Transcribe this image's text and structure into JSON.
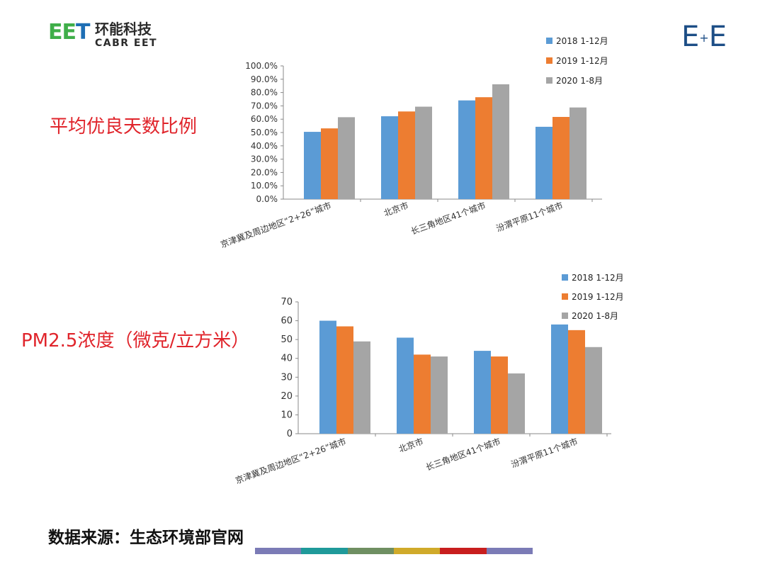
{
  "brand": {
    "logo_mark_green": "EE",
    "logo_mark_blue": "T",
    "logo_cn": "环能科技",
    "logo_en": "CABR EET",
    "corner_mark_left": "E",
    "corner_mark_plus": "+",
    "corner_mark_right": "E"
  },
  "labels": {
    "chart1_side_title": "平均优良天数比例",
    "chart2_side_title": "PM2.5浓度（微克/立方米）"
  },
  "footer": {
    "source": "数据来源：生态环境部官网",
    "stripe_colors": [
      "#7b7bb6",
      "#1f9a9a",
      "#6f8f62",
      "#d0aa2a",
      "#c81e1e",
      "#7b7bb6"
    ]
  },
  "chart_data": [
    {
      "type": "bar",
      "categories": [
        "京津冀及周边地区“2+26”城市",
        "北京市",
        "长三角地区41个城市",
        "汾渭平原11个城市"
      ],
      "series": [
        {
          "name": "2018 1-12月",
          "color": "#5b9bd5",
          "values": [
            50.5,
            62.2,
            74.1,
            54.3
          ]
        },
        {
          "name": "2019 1-12月",
          "color": "#ed7d31",
          "values": [
            53.1,
            65.8,
            76.5,
            61.7
          ]
        },
        {
          "name": "2020 1-8月",
          "color": "#a5a5a5",
          "values": [
            61.5,
            69.4,
            86.2,
            68.8
          ]
        }
      ],
      "ylim": [
        0,
        100
      ],
      "yticks": [
        "0.0%",
        "10.0%",
        "20.0%",
        "30.0%",
        "40.0%",
        "50.0%",
        "60.0%",
        "70.0%",
        "80.0%",
        "90.0%",
        "100.0%"
      ],
      "grid": false,
      "legend": "top-right"
    },
    {
      "type": "bar",
      "categories": [
        "京津冀及周边地区“2+26”城市",
        "北京市",
        "长三角地区41个城市",
        "汾渭平原11个城市"
      ],
      "series": [
        {
          "name": "2018 1-12月",
          "color": "#5b9bd5",
          "values": [
            60,
            51,
            44,
            58
          ]
        },
        {
          "name": "2019 1-12月",
          "color": "#ed7d31",
          "values": [
            57,
            42,
            41,
            55
          ]
        },
        {
          "name": "2020 1-8月",
          "color": "#a5a5a5",
          "values": [
            49,
            41,
            32,
            46
          ]
        }
      ],
      "ylim": [
        0,
        70
      ],
      "yticks": [
        "0",
        "10",
        "20",
        "30",
        "40",
        "50",
        "60",
        "70"
      ],
      "grid": false,
      "legend": "top-right"
    }
  ]
}
